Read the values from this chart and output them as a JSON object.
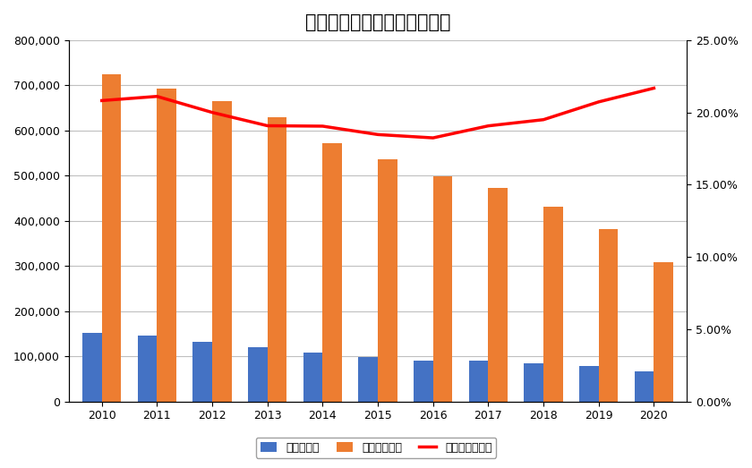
{
  "title": "自転車事故・交通事故の推移",
  "years": [
    2010,
    2011,
    2012,
    2013,
    2014,
    2015,
    2016,
    2017,
    2018,
    2019,
    2020
  ],
  "bicycle_accidents": [
    151000,
    146000,
    133000,
    120000,
    109000,
    99000,
    91000,
    90000,
    84000,
    79000,
    67000
  ],
  "total_accidents": [
    725000,
    692000,
    665000,
    629000,
    572000,
    536000,
    499000,
    472000,
    431000,
    381000,
    309000
  ],
  "bicycle_ratio": [
    0.2082,
    0.2111,
    0.2,
    0.1908,
    0.1905,
    0.1847,
    0.1824,
    0.1907,
    0.195,
    0.2073,
    0.2168
  ],
  "bar_color_blue": "#4472C4",
  "bar_color_orange": "#ED7D31",
  "line_color_red": "#FF0000",
  "background_color": "#FFFFFF",
  "grid_color": "#C0C0C0",
  "legend_labels": [
    "自転車事故",
    "交通事故全体",
    "自転車事故割合"
  ],
  "ylim_left": [
    0,
    800000
  ],
  "ylim_right": [
    0,
    0.25
  ],
  "yticks_left": [
    0,
    100000,
    200000,
    300000,
    400000,
    500000,
    600000,
    700000,
    800000
  ],
  "yticks_right": [
    0,
    0.05,
    0.1,
    0.15,
    0.2,
    0.25
  ],
  "title_fontsize": 15,
  "tick_fontsize": 9,
  "legend_fontsize": 9,
  "bar_width": 0.35
}
